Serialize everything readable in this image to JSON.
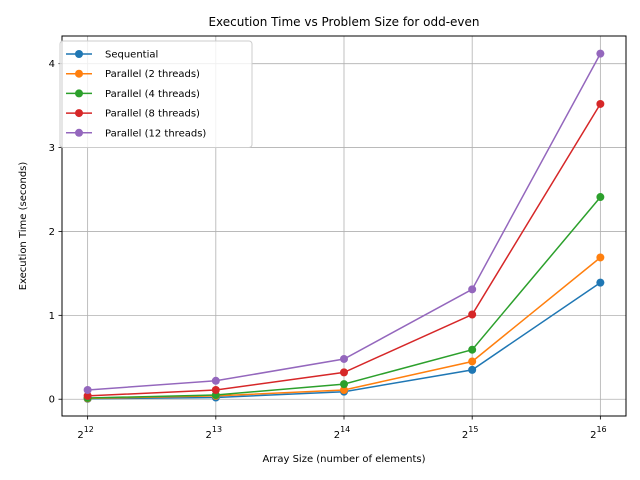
{
  "chart_data": {
    "type": "line",
    "title": "Execution Time vs Problem Size for odd-even",
    "xlabel": "Array Size (number of elements)",
    "ylabel": "Execution Time (seconds)",
    "x_scale": "log2",
    "x": [
      4096,
      8192,
      16384,
      32768,
      65536
    ],
    "x_tick_labels": [
      {
        "base": "2",
        "exp": "12"
      },
      {
        "base": "2",
        "exp": "13"
      },
      {
        "base": "2",
        "exp": "14"
      },
      {
        "base": "2",
        "exp": "15"
      },
      {
        "base": "2",
        "exp": "16"
      }
    ],
    "ylim": [
      -0.2,
      4.33
    ],
    "y_ticks": [
      0,
      1,
      2,
      3,
      4
    ],
    "grid": true,
    "legend_position": "upper-left",
    "series": [
      {
        "name": "Sequential",
        "color": "#1f77b4",
        "values": [
          0.005,
          0.02,
          0.09,
          0.35,
          1.39
        ]
      },
      {
        "name": "Parallel (2 threads)",
        "color": "#ff7f0e",
        "values": [
          0.01,
          0.04,
          0.11,
          0.45,
          1.69
        ]
      },
      {
        "name": "Parallel (4 threads)",
        "color": "#2ca02c",
        "values": [
          0.015,
          0.05,
          0.18,
          0.59,
          2.41
        ]
      },
      {
        "name": "Parallel (8 threads)",
        "color": "#d62728",
        "values": [
          0.04,
          0.11,
          0.32,
          1.01,
          3.52
        ]
      },
      {
        "name": "Parallel (12 threads)",
        "color": "#9467bd",
        "values": [
          0.11,
          0.22,
          0.48,
          1.31,
          4.12
        ]
      }
    ]
  }
}
